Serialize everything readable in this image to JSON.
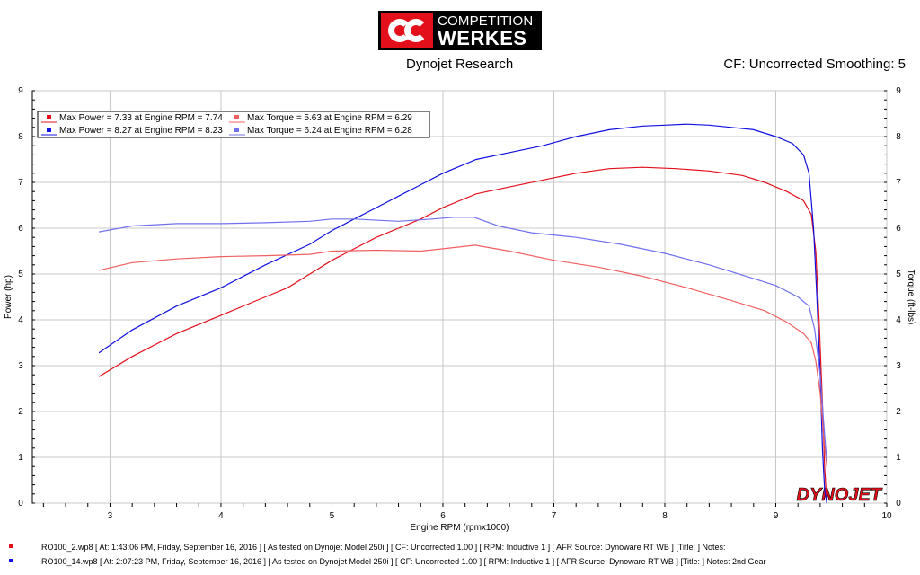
{
  "logo": {
    "line1": "COMPETITION",
    "line2": "WERKES"
  },
  "header": {
    "left": "Dynojet Research",
    "right": "CF: Uncorrected Smoothing: 5"
  },
  "watermark": "DYNOJET",
  "colors": {
    "red": "#e3101b",
    "blue": "#1010e0",
    "light_red": "#f06060",
    "light_blue": "#7070ee"
  },
  "chart_data": {
    "type": "line",
    "xlabel": "Engine RPM (rpmx1000)",
    "ylabel_left": "Power (hp)",
    "ylabel_right": "Torque (ft-lbs)",
    "xlim": [
      2.3,
      10
    ],
    "ylim": [
      0,
      9
    ],
    "xticks": [
      "3",
      "4",
      "5",
      "6",
      "7",
      "8",
      "9",
      "10"
    ],
    "yticks": [
      "0",
      "1",
      "2",
      "3",
      "4",
      "5",
      "6",
      "7",
      "8",
      "9"
    ],
    "grid": true,
    "legend": [
      {
        "label": "Max Power = 7.33 at Engine RPM = 7.74",
        "color": "#e3101b"
      },
      {
        "label": "Max Torque = 5.63 at Engine RPM = 6.29",
        "color": "#f06060"
      },
      {
        "label": "Max Power = 8.27 at Engine RPM = 8.23",
        "color": "#1010e0"
      },
      {
        "label": "Max Torque = 6.24 at Engine RPM = 6.28",
        "color": "#7070ee"
      }
    ],
    "series": [
      {
        "color": "#e3101b",
        "x": [
          2.9,
          3.2,
          3.6,
          4.0,
          4.4,
          4.6,
          4.8,
          5.0,
          5.2,
          5.4,
          5.6,
          5.8,
          6.0,
          6.3,
          6.6,
          6.9,
          7.2,
          7.5,
          7.8,
          8.1,
          8.4,
          8.7,
          8.9,
          9.1,
          9.25,
          9.32,
          9.36,
          9.39,
          9.42,
          9.44,
          9.46
        ],
        "y": [
          2.76,
          3.2,
          3.7,
          4.1,
          4.5,
          4.7,
          5.0,
          5.3,
          5.55,
          5.8,
          6.0,
          6.2,
          6.45,
          6.75,
          6.9,
          7.05,
          7.2,
          7.3,
          7.33,
          7.3,
          7.25,
          7.15,
          7.0,
          6.8,
          6.6,
          6.3,
          5.5,
          4.0,
          2.2,
          0.8,
          0.0
        ]
      },
      {
        "color": "#1010e0",
        "x": [
          2.9,
          3.2,
          3.6,
          4.0,
          4.4,
          4.8,
          5.0,
          5.2,
          5.4,
          5.6,
          5.8,
          6.0,
          6.3,
          6.6,
          6.9,
          7.2,
          7.5,
          7.8,
          8.0,
          8.2,
          8.4,
          8.6,
          8.8,
          9.0,
          9.15,
          9.25,
          9.3,
          9.34,
          9.37,
          9.4,
          9.42,
          9.44,
          9.46
        ],
        "y": [
          3.28,
          3.78,
          4.3,
          4.7,
          5.2,
          5.65,
          5.95,
          6.2,
          6.45,
          6.7,
          6.95,
          7.2,
          7.5,
          7.65,
          7.8,
          8.0,
          8.15,
          8.23,
          8.25,
          8.27,
          8.25,
          8.2,
          8.15,
          8.0,
          7.85,
          7.6,
          7.2,
          6.0,
          4.5,
          2.8,
          1.2,
          0.3,
          0.0
        ]
      },
      {
        "color": "#f06060",
        "x": [
          2.9,
          3.2,
          3.6,
          4.0,
          4.4,
          4.8,
          5.0,
          5.4,
          5.8,
          6.0,
          6.29,
          6.6,
          7.0,
          7.4,
          7.8,
          8.2,
          8.6,
          8.9,
          9.1,
          9.25,
          9.32,
          9.36,
          9.4,
          9.43,
          9.46
        ],
        "y": [
          5.08,
          5.25,
          5.33,
          5.38,
          5.4,
          5.43,
          5.5,
          5.52,
          5.5,
          5.55,
          5.63,
          5.5,
          5.3,
          5.15,
          4.95,
          4.7,
          4.42,
          4.2,
          3.95,
          3.7,
          3.5,
          3.1,
          2.4,
          1.5,
          0.8
        ]
      },
      {
        "color": "#7070ee",
        "x": [
          2.9,
          3.2,
          3.6,
          4.0,
          4.4,
          4.8,
          5.0,
          5.2,
          5.6,
          5.9,
          6.1,
          6.28,
          6.5,
          6.8,
          7.2,
          7.6,
          8.0,
          8.4,
          8.8,
          9.0,
          9.2,
          9.3,
          9.35,
          9.4,
          9.43,
          9.46
        ],
        "y": [
          5.92,
          6.05,
          6.1,
          6.1,
          6.12,
          6.15,
          6.2,
          6.2,
          6.15,
          6.2,
          6.24,
          6.24,
          6.05,
          5.9,
          5.8,
          5.65,
          5.45,
          5.2,
          4.9,
          4.75,
          4.5,
          4.3,
          3.8,
          2.8,
          1.8,
          0.9
        ]
      }
    ]
  },
  "footer": [
    {
      "color": "#e3101b",
      "text": "RO100_2.wp8 [ At: 1:43:06 PM, Friday, September 16, 2016 ] [ As tested on Dynojet Model 250i ] [ CF: Uncorrected 1.00 ] [ RPM: Inductive 1 ] [ AFR Source: Dynoware RT WB ] [Title: ]  Notes:"
    },
    {
      "color": "#1010e0",
      "text": "RO100_14.wp8 [ At: 2:07:23 PM, Friday, September 16, 2016 ] [ As tested on Dynojet Model 250i ] [ CF: Uncorrected 1.00 ] [ RPM: Inductive 1 ] [ AFR Source: Dynoware RT WB ] [Title: ]  Notes: 2nd Gear"
    }
  ]
}
